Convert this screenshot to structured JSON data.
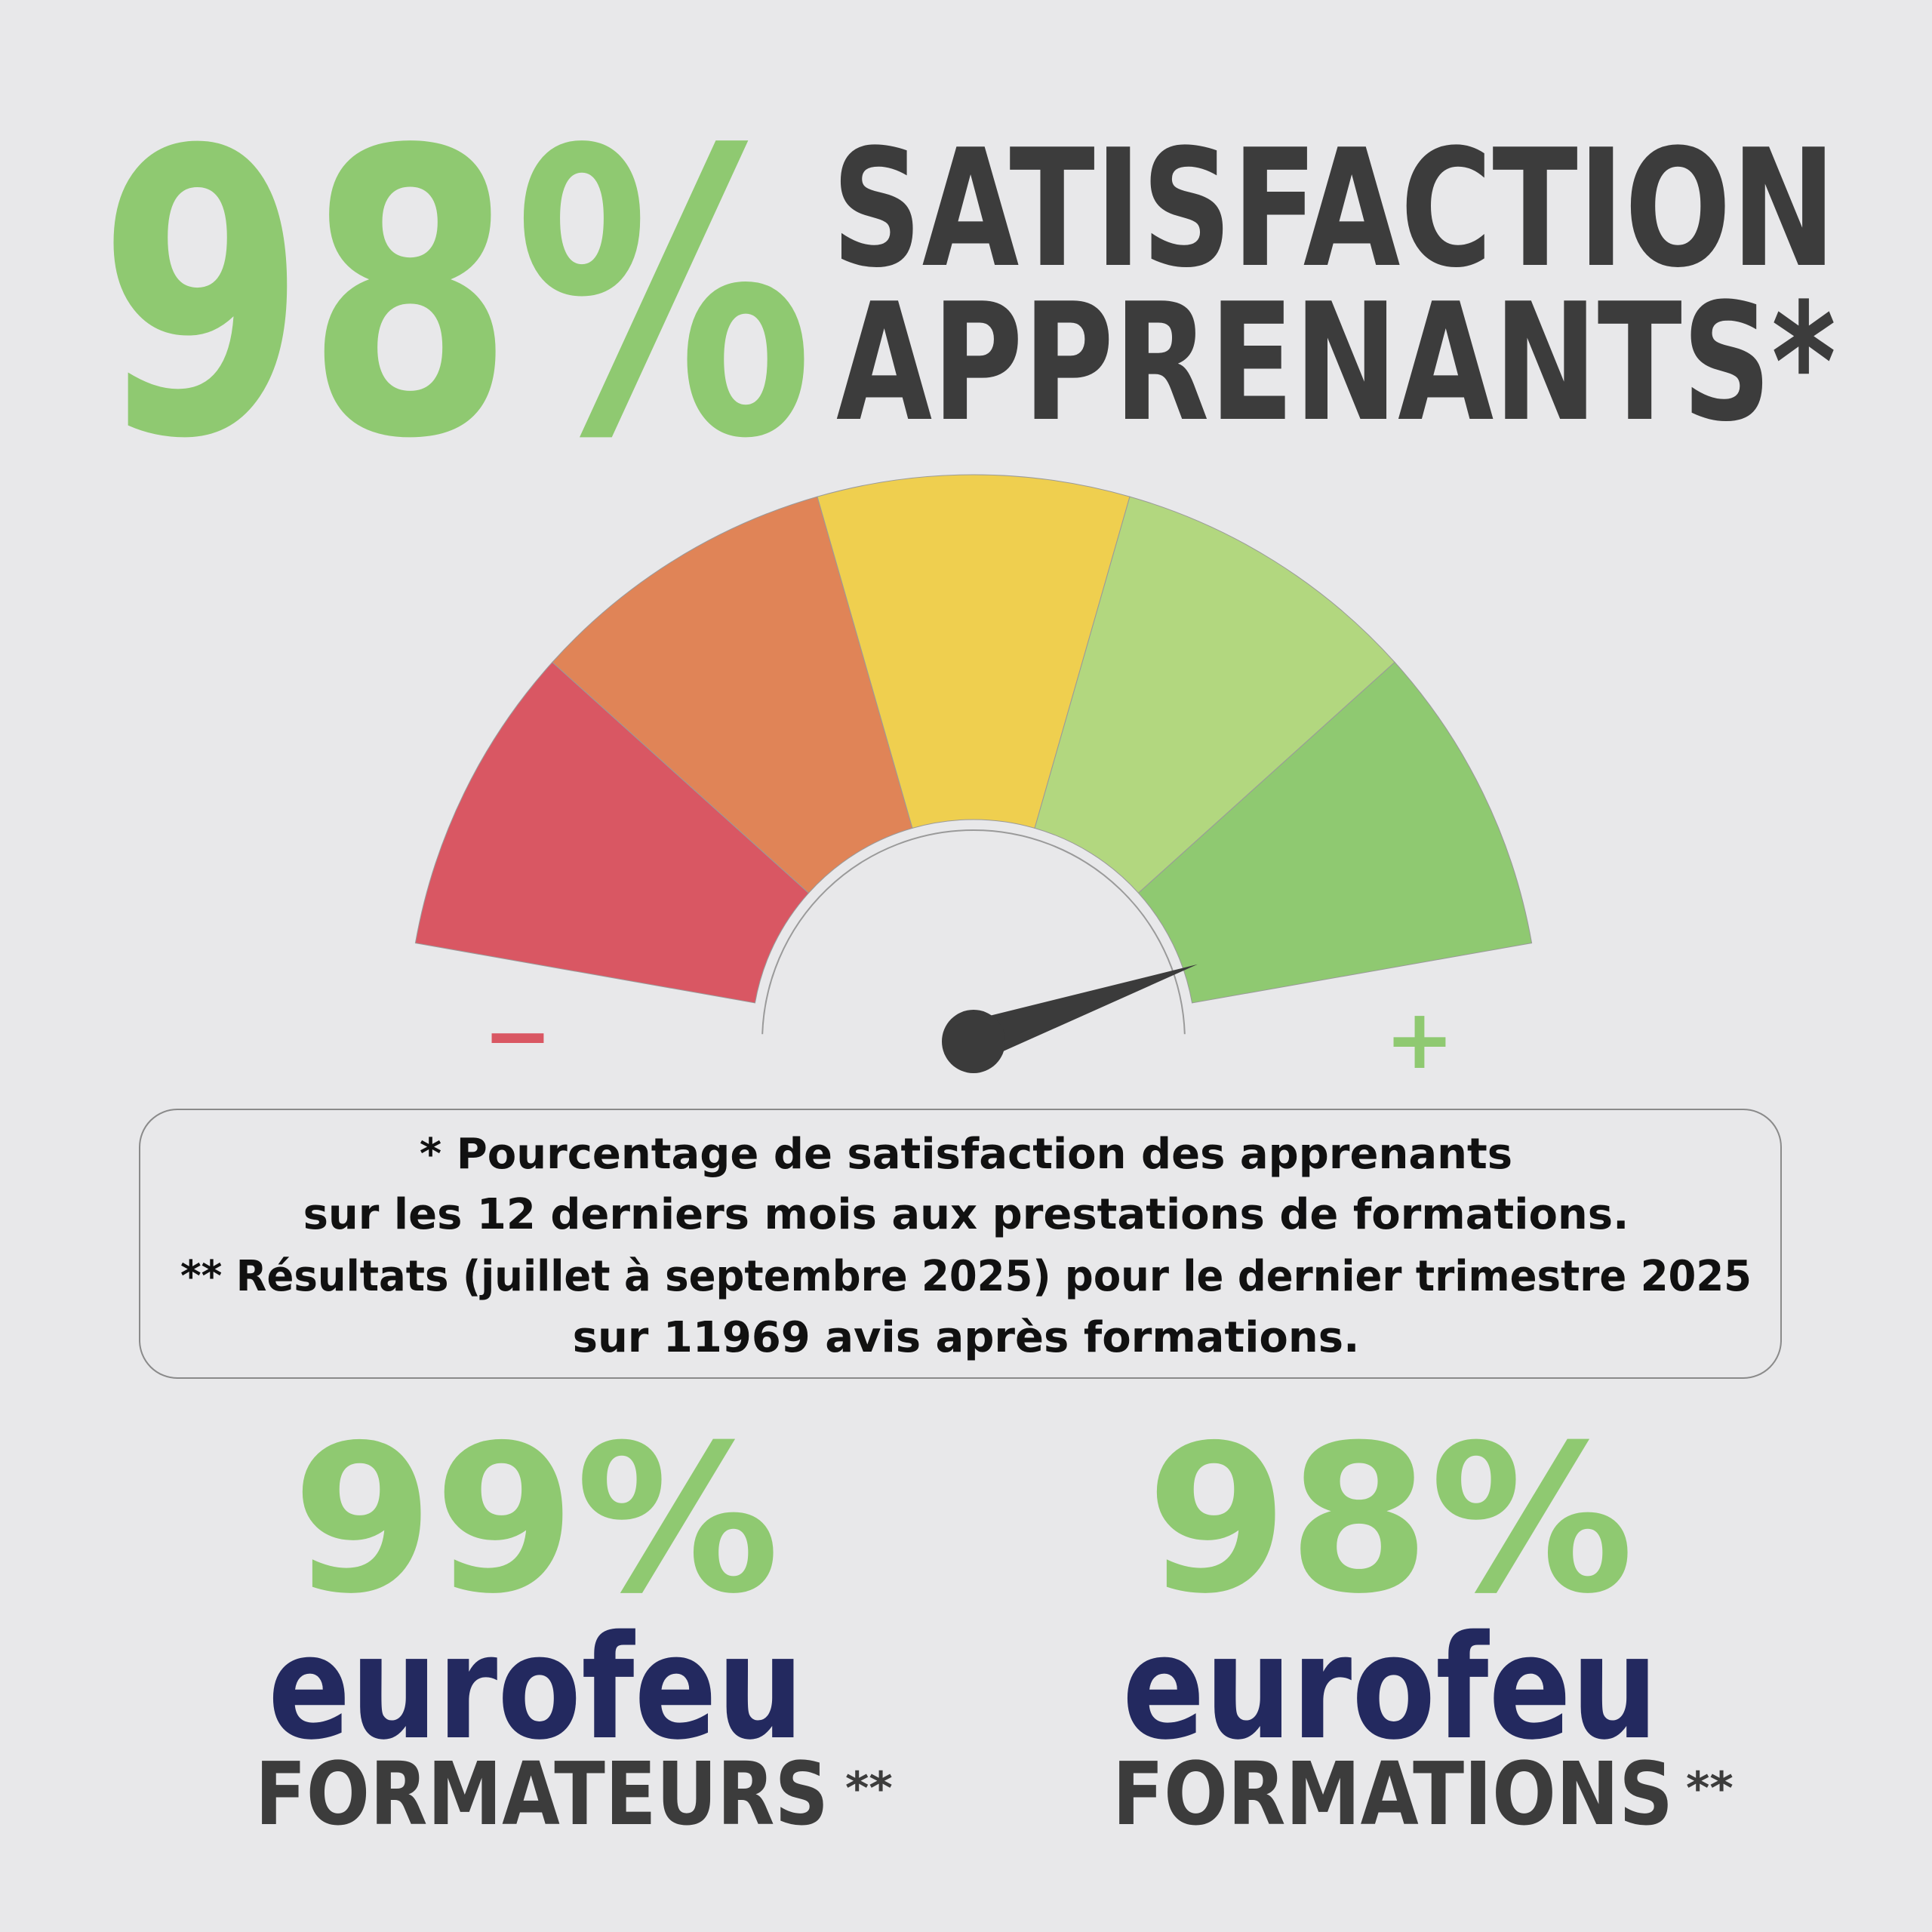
{
  "headline": {
    "value": "98%",
    "title": [
      "SATISFACTION",
      "APPRENANTS*"
    ]
  },
  "gauge": {
    "min_label": "−",
    "max_label": "+"
  },
  "note": [
    "* Pourcentage de satisfaction des apprenants",
    "sur les 12 derniers mois aux prestations de formations.",
    "** Résultats (juillet à septembre 2025) pour le dernier trimestre 2025",
    "sur 11969 avis après formations."
  ],
  "stats": [
    {
      "value": "99%",
      "brand": "eurofeu",
      "label": "FORMATEURS",
      "mark": "**"
    },
    {
      "value": "98%",
      "brand": "eurofeu",
      "label": "FORMATIONS",
      "mark": "**"
    }
  ]
}
